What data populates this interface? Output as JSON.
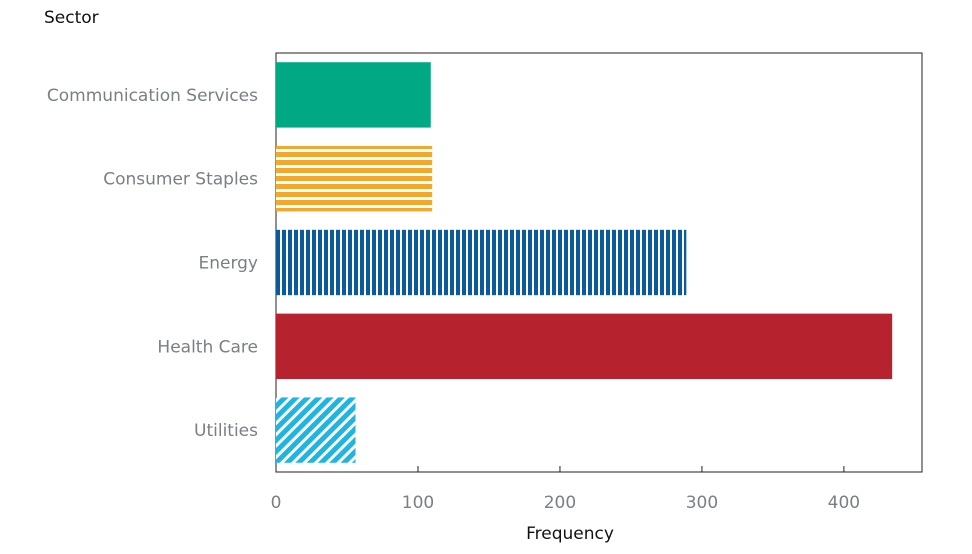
{
  "chart_data": {
    "type": "bar",
    "orientation": "horizontal",
    "ylabel": "Sector",
    "xlabel": "Frequency",
    "categories": [
      "Communication Services",
      "Consumer Staples",
      "Energy",
      "Health Care",
      "Utilities"
    ],
    "values": [
      109,
      110,
      289,
      434,
      56
    ],
    "xlim": [
      0,
      455
    ],
    "xticks": [
      "0",
      "100",
      "200",
      "300",
      "400"
    ],
    "colors": [
      "#00a884",
      "#f2a72e",
      "#0a5a9c",
      "#b7222f",
      "#1fb5e0"
    ],
    "patterns": [
      "solid",
      "horizontal-stripes",
      "vertical-stripes",
      "solid",
      "diagonal-stripes"
    ],
    "grid": false
  }
}
